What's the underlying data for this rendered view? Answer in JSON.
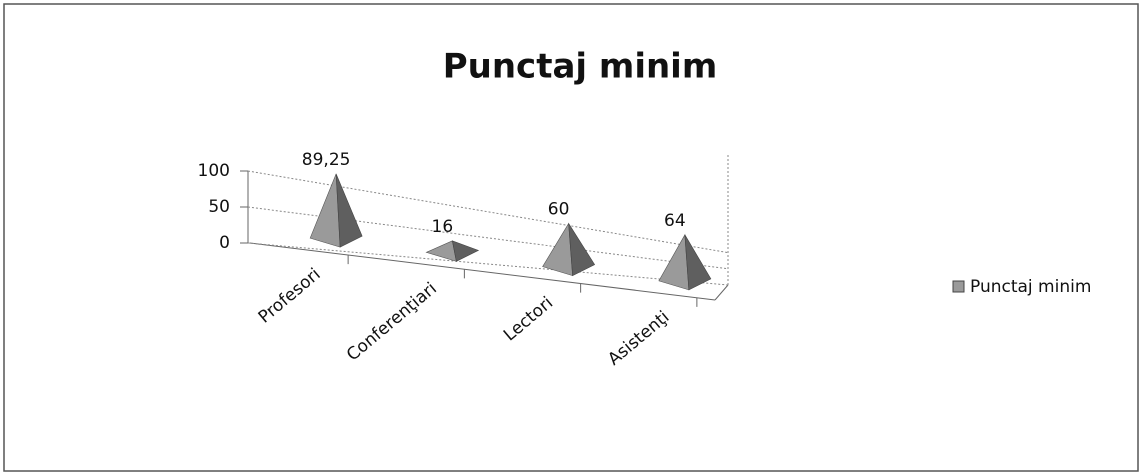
{
  "chart_data": {
    "type": "bar",
    "title": "Punctaj minim",
    "categories": [
      "Profesori",
      "Conferenţiari",
      "Lectori",
      "Asistenţi"
    ],
    "series": [
      {
        "name": "Punctaj minim",
        "color": "#9a9a9a",
        "values": [
          89.25,
          16,
          60,
          64
        ],
        "value_labels": [
          "89,25",
          "16",
          "60",
          "64"
        ]
      }
    ],
    "ylim": [
      0,
      100
    ],
    "yticks": [
      0,
      50,
      100
    ],
    "grid": true,
    "legend": "right"
  }
}
